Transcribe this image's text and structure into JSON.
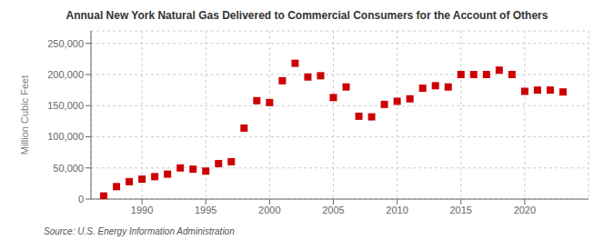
{
  "chart_data": {
    "type": "scatter",
    "title": "Annual New York Natural Gas Delivered to Commercial Consumers for the Account of Others",
    "ylabel": "Million Cubic Feet",
    "annotations": [
      "Source: U.S. Energy Information Administration"
    ],
    "x": [
      1987,
      1988,
      1989,
      1990,
      1991,
      1992,
      1993,
      1994,
      1995,
      1996,
      1997,
      1998,
      1999,
      2000,
      2001,
      2002,
      2003,
      2004,
      2005,
      2006,
      2007,
      2008,
      2009,
      2010,
      2011,
      2012,
      2013,
      2014,
      2015,
      2016,
      2017,
      2018,
      2019,
      2020,
      2021,
      2022,
      2023
    ],
    "values": [
      5000,
      20000,
      28000,
      32000,
      36000,
      40000,
      50000,
      48000,
      45000,
      57000,
      60000,
      114000,
      158000,
      155000,
      190000,
      218000,
      196000,
      198000,
      163000,
      180000,
      133000,
      132000,
      152000,
      157000,
      161000,
      178000,
      182000,
      180000,
      200000,
      200000,
      200000,
      207000,
      200000,
      173000,
      175000,
      175000,
      172000
    ],
    "color": "#cc0000",
    "marker": "square",
    "xlim": [
      1986,
      2025
    ],
    "xticks": [
      1990,
      1995,
      2000,
      2005,
      2010,
      2015,
      2020
    ],
    "ylim": [
      0,
      270000
    ],
    "yticks": [
      0,
      {
        "value": 50000,
        "label": "50,000"
      },
      {
        "value": 100000,
        "label": "100,000"
      },
      {
        "value": 150000,
        "label": "150,000"
      },
      {
        "value": 200000,
        "label": "200,000"
      },
      {
        "value": 250000,
        "label": "250,000"
      }
    ],
    "grid": true
  }
}
